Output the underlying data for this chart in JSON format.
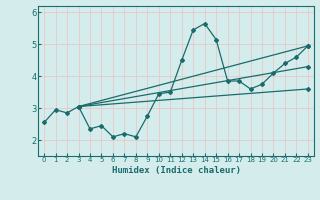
{
  "xlabel": "Humidex (Indice chaleur)",
  "bg_color": "#d4edec",
  "line_color": "#1a6b6b",
  "grid_color": "#c8e0de",
  "xlim": [
    -0.5,
    23.5
  ],
  "ylim": [
    1.5,
    6.2
  ],
  "yticks": [
    2,
    3,
    4,
    5,
    6
  ],
  "xticks": [
    0,
    1,
    2,
    3,
    4,
    5,
    6,
    7,
    8,
    9,
    10,
    11,
    12,
    13,
    14,
    15,
    16,
    17,
    18,
    19,
    20,
    21,
    22,
    23
  ],
  "lines": [
    {
      "x": [
        0,
        1,
        2,
        3,
        4,
        5,
        6,
        7,
        8,
        9,
        10,
        11,
        12,
        13,
        14,
        15,
        16,
        17,
        18,
        19,
        20,
        21,
        22,
        23
      ],
      "y": [
        2.55,
        2.95,
        2.85,
        3.05,
        2.35,
        2.45,
        2.1,
        2.2,
        2.1,
        2.75,
        3.45,
        3.5,
        4.5,
        5.45,
        5.65,
        5.15,
        3.85,
        3.85,
        3.6,
        3.75,
        4.1,
        4.4,
        4.6,
        4.95
      ]
    },
    {
      "x": [
        3,
        23
      ],
      "y": [
        3.05,
        4.95
      ]
    },
    {
      "x": [
        3,
        23
      ],
      "y": [
        3.05,
        3.6
      ]
    },
    {
      "x": [
        3,
        23
      ],
      "y": [
        3.05,
        4.3
      ]
    }
  ]
}
